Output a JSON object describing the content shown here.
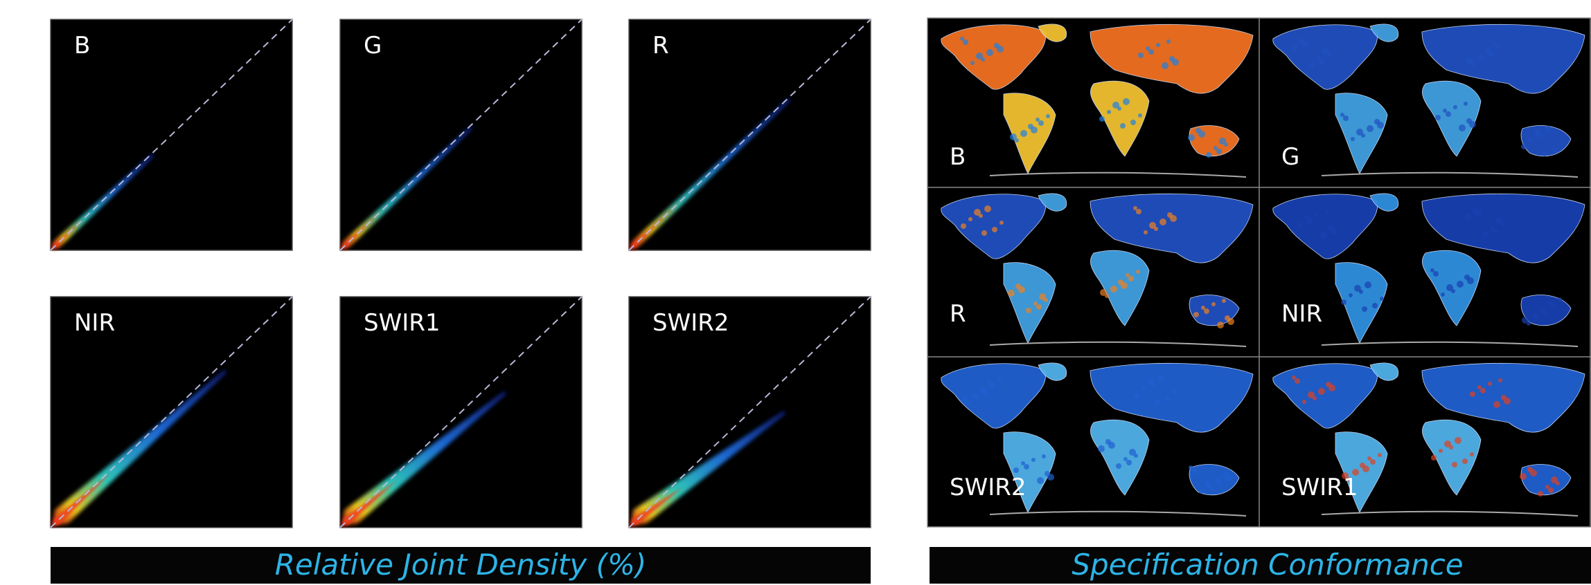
{
  "scatter_panels": [
    {
      "label": "B"
    },
    {
      "label": "G"
    },
    {
      "label": "R"
    },
    {
      "label": "NIR"
    },
    {
      "label": "SWIR1"
    },
    {
      "label": "SWIR2"
    }
  ],
  "scatter_caption": "Relative Joint Density (%)",
  "map_panels": [
    {
      "label": "B"
    },
    {
      "label": "G"
    },
    {
      "label": "R"
    },
    {
      "label": "NIR"
    },
    {
      "label": "SWIR2"
    },
    {
      "label": "SWIR1"
    }
  ],
  "map_caption": "Specification Conformance"
}
